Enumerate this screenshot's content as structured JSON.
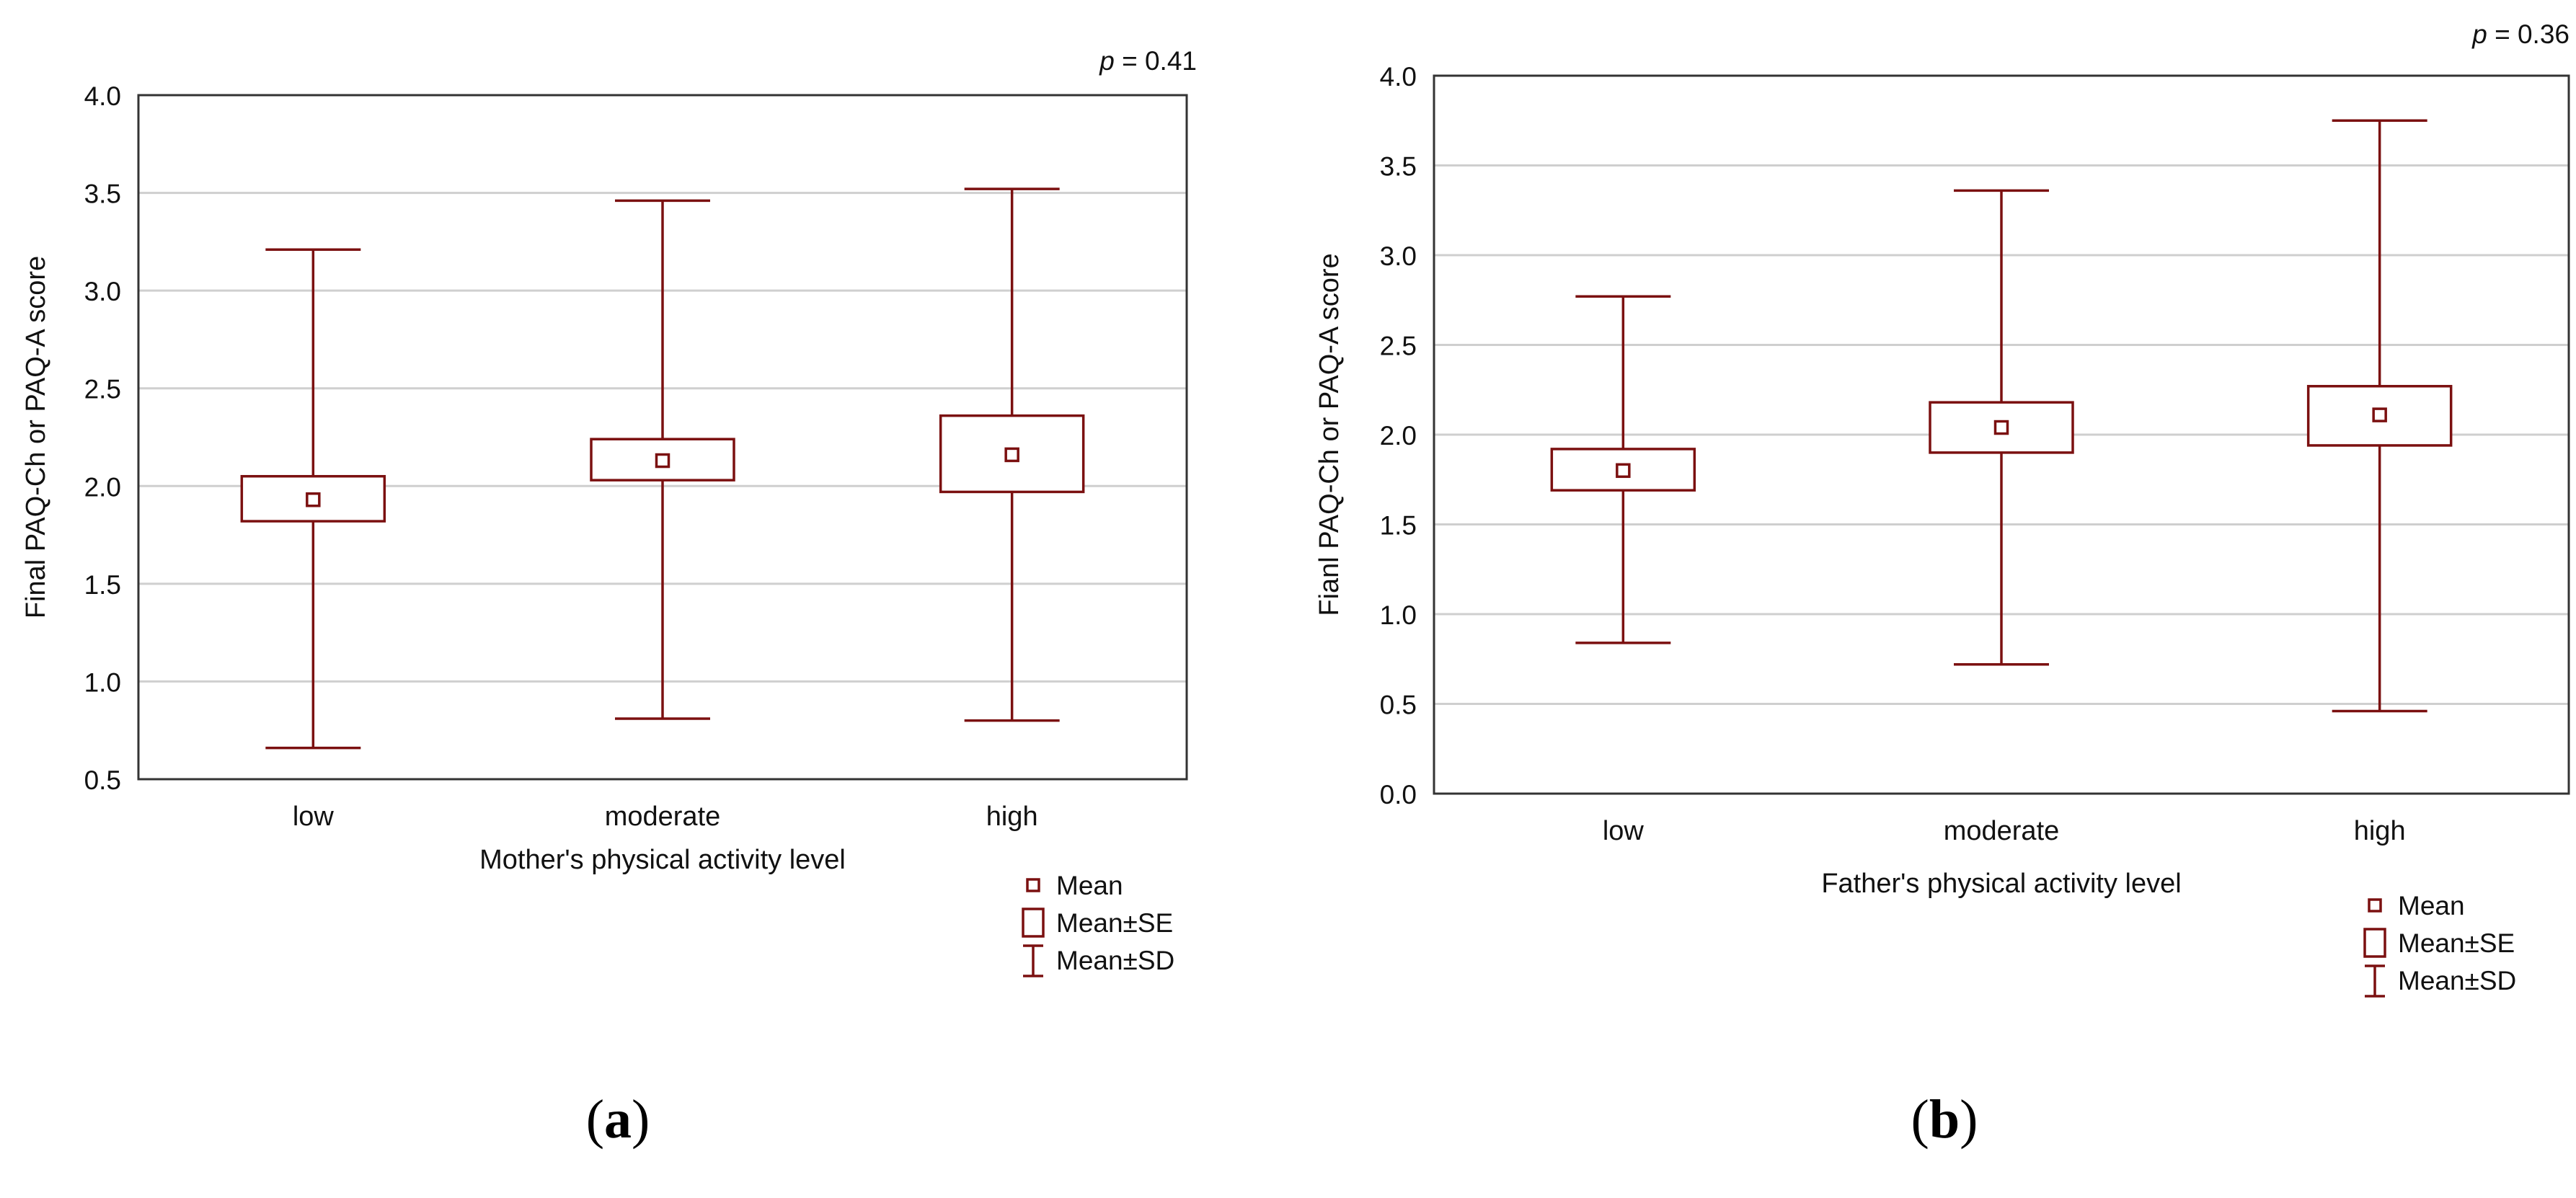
{
  "colors": {
    "mark": "#7b1010",
    "grid": "#cfcfcf",
    "frame": "#333333",
    "text": "#111111"
  },
  "chart_data": [
    {
      "panel": "a",
      "type": "box",
      "caption_open": "(",
      "caption_letter": "a",
      "caption_close": ")",
      "pvalue_p": "p",
      "pvalue_rest": " = 0.41",
      "xlabel": "Mother's physical activity level",
      "ylabel": "Final PAQ-Ch or PAQ-A score",
      "ylim": [
        0.5,
        4.0
      ],
      "yticks": [
        "0.5",
        "1.0",
        "1.5",
        "2.0",
        "2.5",
        "3.0",
        "3.5",
        "4.0"
      ],
      "grid": true,
      "categories": [
        "low",
        "moderate",
        "high"
      ],
      "mean": [
        1.93,
        2.13,
        2.16
      ],
      "se_low": [
        1.82,
        2.03,
        1.97
      ],
      "se_high": [
        2.05,
        2.24,
        2.36
      ],
      "sd_low": [
        0.66,
        0.81,
        0.8
      ],
      "sd_high": [
        3.21,
        3.46,
        3.52
      ],
      "legend": [
        "Mean",
        "Mean±SE",
        "Mean±SD"
      ]
    },
    {
      "panel": "b",
      "type": "box",
      "caption_open": "(",
      "caption_letter": "b",
      "caption_close": ")",
      "pvalue_p": "p",
      "pvalue_rest": " = 0.36",
      "xlabel": "Father's physical activity level",
      "ylabel": "Fianl PAQ-Ch or PAQ-A score",
      "ylim": [
        0.0,
        4.0
      ],
      "yticks": [
        "0.0",
        "0.5",
        "1.0",
        "1.5",
        "2.0",
        "2.5",
        "3.0",
        "3.5",
        "4.0"
      ],
      "grid": true,
      "categories": [
        "low",
        "moderate",
        "high"
      ],
      "mean": [
        1.8,
        2.04,
        2.11
      ],
      "se_low": [
        1.69,
        1.9,
        1.94
      ],
      "se_high": [
        1.92,
        2.18,
        2.27
      ],
      "sd_low": [
        0.84,
        0.72,
        0.46
      ],
      "sd_high": [
        2.77,
        3.36,
        3.75
      ],
      "legend": [
        "Mean",
        "Mean±SE",
        "Mean±SD"
      ]
    }
  ]
}
